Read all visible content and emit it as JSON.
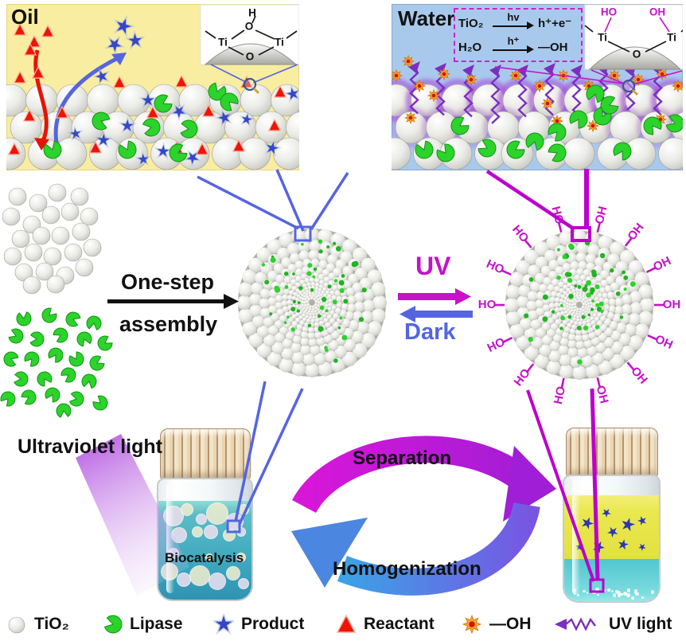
{
  "oil_panel": {
    "label": "Oil",
    "inset": {
      "h": "H",
      "o_top": "O",
      "ti_left": "Ti",
      "ti_right": "Ti",
      "o_bottom": "O"
    }
  },
  "water_panel": {
    "label": "Water",
    "equations": [
      {
        "reactant": "TiO₂",
        "condition": "hv",
        "product": "h⁺+e⁻"
      },
      {
        "reactant": "H₂O",
        "condition": "h⁺",
        "product": "—OH"
      }
    ],
    "inset": {
      "ho": "HO",
      "oh": "OH",
      "ti_left": "Ti",
      "ti_right": "Ti",
      "o": "O"
    }
  },
  "assembly": {
    "line1": "One-step",
    "line2": "assembly"
  },
  "switch": {
    "uv": "UV",
    "dark": "Dark"
  },
  "right_sphere": {
    "oh": "OH",
    "ho": "HO"
  },
  "uv_beam": {
    "label": "Ultraviolet light"
  },
  "vial_left": {
    "label": "Biocatalysis"
  },
  "cycle": {
    "top": "Separation",
    "bottom": "Homogenization"
  },
  "legend": {
    "items": [
      {
        "icon": "tio2-sphere-icon",
        "label": "TiO₂"
      },
      {
        "icon": "lipase-icon",
        "label": "Lipase"
      },
      {
        "icon": "product-star-icon",
        "label": "Product"
      },
      {
        "icon": "reactant-triangle-icon",
        "label": "Reactant"
      },
      {
        "icon": "hydroxyl-sun-icon",
        "label": "—OH"
      },
      {
        "icon": "uv-light-icon",
        "label": "UV light"
      }
    ]
  },
  "colors": {
    "oil_bg": "#f8eda1",
    "water_bg": "#a9c9ec",
    "magenta": "#c413c9",
    "blue": "#5565e0",
    "red": "#ee1407",
    "green": "#2bd32b",
    "star_blue": "#3646c8",
    "uv_purple": "#7a2fc0",
    "sun_orange": "#f2a92c",
    "cap_tan": "#e9d5b4",
    "teal_liquid": "#3aa4bd",
    "yellow_liquid": "#eae84f"
  }
}
